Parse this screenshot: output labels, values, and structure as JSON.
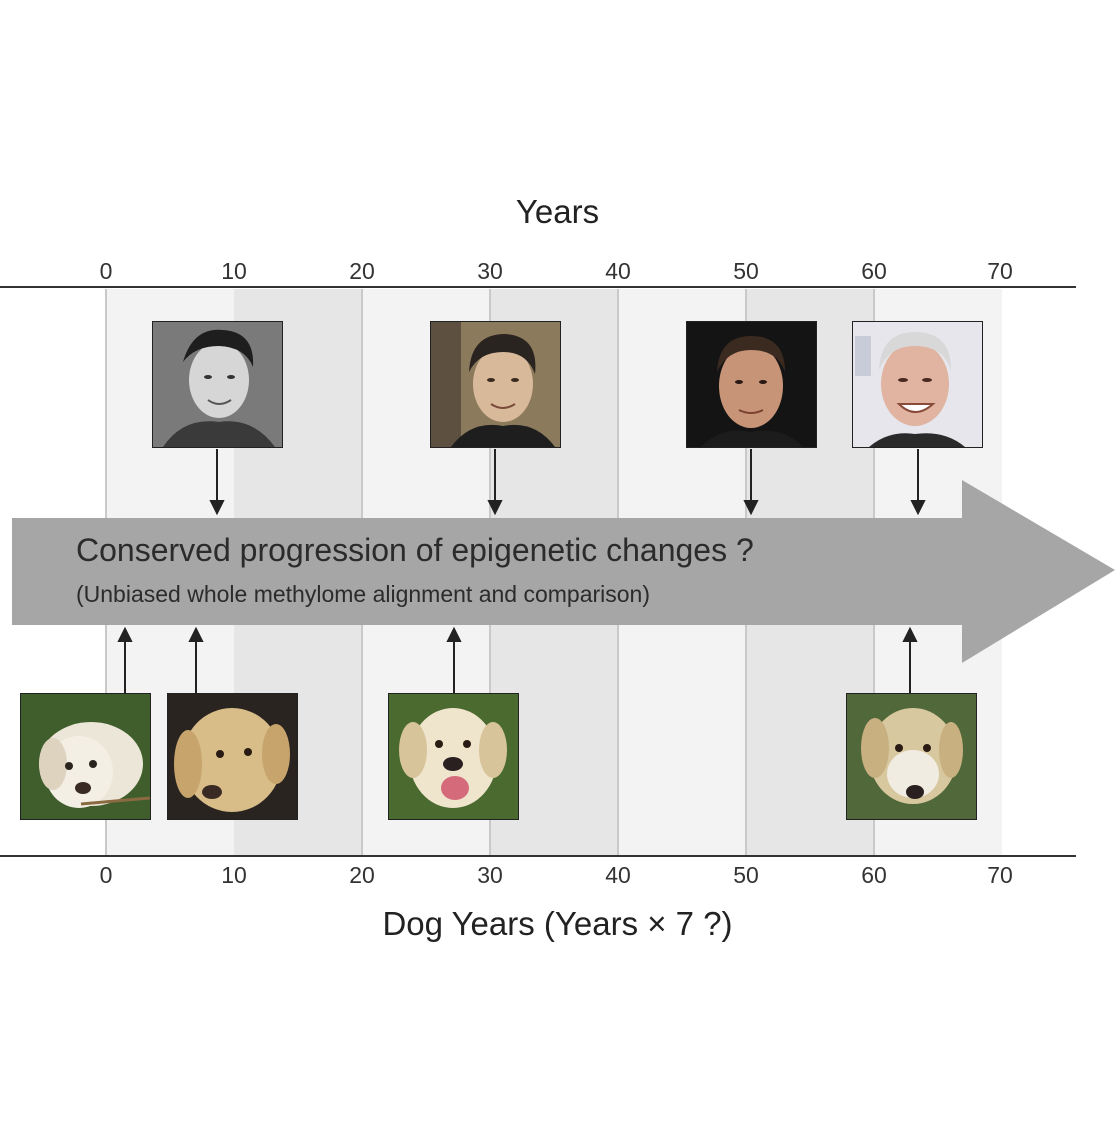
{
  "top_axis": {
    "title": "Years",
    "ticks": [
      "0",
      "10",
      "20",
      "30",
      "40",
      "50",
      "60",
      "70"
    ]
  },
  "bottom_axis": {
    "title": "Dog Years (Years × 7 ?)",
    "ticks": [
      "0",
      "10",
      "20",
      "30",
      "40",
      "50",
      "60",
      "70"
    ]
  },
  "banner": {
    "main": "Conserved progression of epigenetic changes ?",
    "sub": "(Unbiased whole methylome alignment and comparison)"
  },
  "human_photos": [
    {
      "name": "human-photo-child"
    },
    {
      "name": "human-photo-young-adult"
    },
    {
      "name": "human-photo-middle-aged"
    },
    {
      "name": "human-photo-older"
    }
  ],
  "dog_photos": [
    {
      "name": "dog-photo-puppy"
    },
    {
      "name": "dog-photo-young"
    },
    {
      "name": "dog-photo-adult"
    },
    {
      "name": "dog-photo-senior"
    }
  ],
  "colors": {
    "band_light": "#f3f3f3",
    "band_dark": "#e6e6e6",
    "banner": "#a6a6a6",
    "axis": "#333333"
  }
}
